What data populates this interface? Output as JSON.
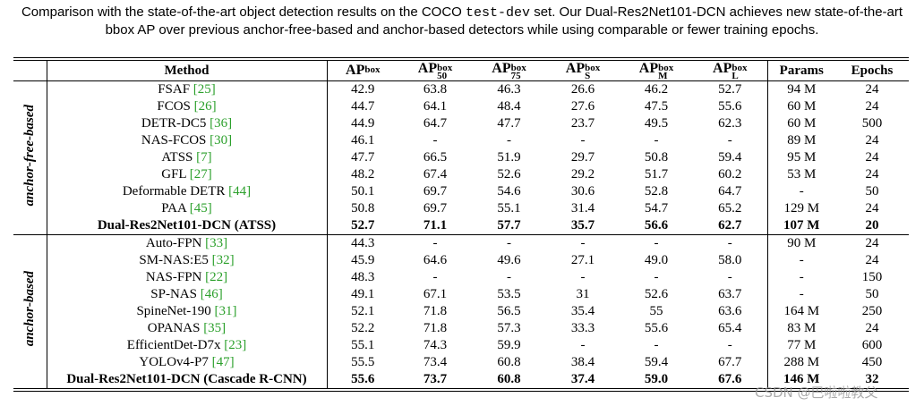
{
  "caption": {
    "text_before": "Comparison with the state-of-the-art object detection results on the COCO",
    "code": "test-dev",
    "text_after": "set. Our Dual-Res2Net101-DCN achieves new state-of-the-art bbox AP over previous anchor-free-based and anchor-based detectors while using comparable or fewer training epochs."
  },
  "table": {
    "header": [
      {
        "main": "Method"
      },
      {
        "main": "AP",
        "sup": "box"
      },
      {
        "main": "AP",
        "sup": "box",
        "sub": "50"
      },
      {
        "main": "AP",
        "sup": "box",
        "sub": "75"
      },
      {
        "main": "AP",
        "sup": "box",
        "sub": "S"
      },
      {
        "main": "AP",
        "sup": "box",
        "sub": "M"
      },
      {
        "main": "AP",
        "sup": "box",
        "sub": "L"
      },
      {
        "main": "Params"
      },
      {
        "main": "Epochs"
      }
    ],
    "groups": [
      {
        "label": "anchor-free-based",
        "rows": [
          {
            "method": "FSAF",
            "ref": "[25]",
            "cells": [
              "42.9",
              "63.8",
              "46.3",
              "26.6",
              "46.2",
              "52.7",
              "94 M",
              "24"
            ]
          },
          {
            "method": "FCOS",
            "ref": "[26]",
            "cells": [
              "44.7",
              "64.1",
              "48.4",
              "27.6",
              "47.5",
              "55.6",
              "60 M",
              "24"
            ]
          },
          {
            "method": "DETR-DC5",
            "ref": "[36]",
            "cells": [
              "44.9",
              "64.7",
              "47.7",
              "23.7",
              "49.5",
              "62.3",
              "60 M",
              "500"
            ]
          },
          {
            "method": "NAS-FCOS",
            "ref": "[30]",
            "cells": [
              "46.1",
              "-",
              "-",
              "-",
              "-",
              "-",
              "89 M",
              "24"
            ]
          },
          {
            "method": "ATSS",
            "ref": "[7]",
            "cells": [
              "47.7",
              "66.5",
              "51.9",
              "29.7",
              "50.8",
              "59.4",
              "95 M",
              "24"
            ]
          },
          {
            "method": "GFL",
            "ref": "[27]",
            "cells": [
              "48.2",
              "67.4",
              "52.6",
              "29.2",
              "51.7",
              "60.2",
              "53 M",
              "24"
            ]
          },
          {
            "method": "Deformable DETR",
            "ref": "[44]",
            "cells": [
              "50.1",
              "69.7",
              "54.6",
              "30.6",
              "52.8",
              "64.7",
              "-",
              "50"
            ]
          },
          {
            "method": "PAA",
            "ref": "[45]",
            "cells": [
              "50.8",
              "69.7",
              "55.1",
              "31.4",
              "54.7",
              "65.2",
              "129 M",
              "24"
            ]
          },
          {
            "method": "Dual-Res2Net101-DCN (ATSS)",
            "bold": true,
            "cells": [
              "52.7",
              "71.1",
              "57.7",
              "35.7",
              "56.6",
              "62.7",
              "107 M",
              "20"
            ]
          }
        ]
      },
      {
        "label": "anchor-based",
        "rows": [
          {
            "method": "Auto-FPN",
            "ref": "[33]",
            "cells": [
              "44.3",
              "-",
              "-",
              "-",
              "-",
              "-",
              "90 M",
              "24"
            ]
          },
          {
            "method": "SM-NAS:E5",
            "ref": "[32]",
            "cells": [
              "45.9",
              "64.6",
              "49.6",
              "27.1",
              "49.0",
              "58.0",
              "-",
              "24"
            ]
          },
          {
            "method": "NAS-FPN",
            "ref": "[22]",
            "cells": [
              "48.3",
              "-",
              "-",
              "-",
              "-",
              "-",
              "-",
              "150"
            ]
          },
          {
            "method": "SP-NAS",
            "ref": "[46]",
            "cells": [
              "49.1",
              "67.1",
              "53.5",
              "31",
              "52.6",
              "63.7",
              "-",
              "50"
            ]
          },
          {
            "method": "SpineNet-190",
            "ref": "[31]",
            "cells": [
              "52.1",
              "71.8",
              "56.5",
              "35.4",
              "55",
              "63.6",
              "164 M",
              "250"
            ]
          },
          {
            "method": "OPANAS",
            "ref": "[35]",
            "cells": [
              "52.2",
              "71.8",
              "57.3",
              "33.3",
              "55.6",
              "65.4",
              "83 M",
              "24"
            ]
          },
          {
            "method": "EfficientDet-D7x",
            "ref": "[23]",
            "cells": [
              "55.1",
              "74.3",
              "59.9",
              "-",
              "-",
              "-",
              "77 M",
              "600"
            ]
          },
          {
            "method": "YOLOv4-P7",
            "ref": "[47]",
            "cells": [
              "55.5",
              "73.4",
              "60.8",
              "38.4",
              "59.4",
              "67.7",
              "288 M",
              "450"
            ]
          },
          {
            "method": "Dual-Res2Net101-DCN (Cascade R-CNN)",
            "bold": true,
            "cells": [
              "55.6",
              "73.7",
              "60.8",
              "37.4",
              "59.0",
              "67.6",
              "146 M",
              "32"
            ]
          }
        ]
      }
    ]
  },
  "watermark": "CSDN @巴啦啦教父"
}
